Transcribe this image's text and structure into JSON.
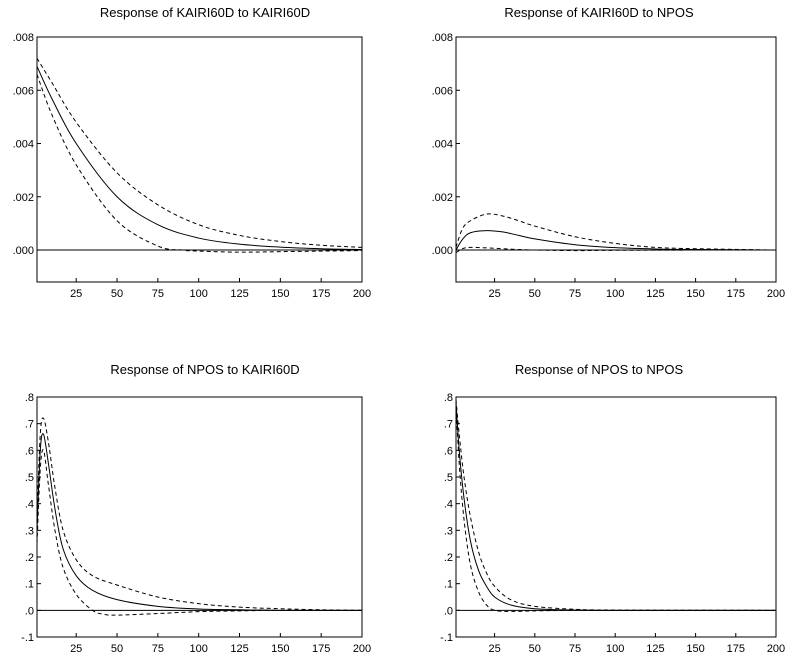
{
  "chart_data": [
    {
      "type": "line",
      "title": "Response of KAIRI60D to KAIRI60D",
      "xlabel": "",
      "ylabel": "",
      "xlim": [
        1,
        200
      ],
      "ylim": [
        -0.0012,
        0.008
      ],
      "xticks": [
        25,
        50,
        75,
        100,
        125,
        150,
        175,
        200
      ],
      "xtick_labels": [
        "25",
        "50",
        "75",
        "100",
        "125",
        "150",
        "175",
        "200"
      ],
      "yticks": [
        0,
        0.002,
        0.004,
        0.006,
        0.008
      ],
      "ytick_labels": [
        ".000",
        ".002",
        ".004",
        ".006",
        ".008"
      ],
      "zero_line": true,
      "series": [
        {
          "style": "solid",
          "x": [
            1,
            10,
            25,
            50,
            75,
            100,
            125,
            150,
            175,
            200
          ],
          "y": [
            0.0069,
            0.0057,
            0.004,
            0.002,
            0.00095,
            0.00045,
            0.00022,
            0.00011,
            5e-05,
            2e-05
          ]
        },
        {
          "style": "dashed",
          "x": [
            1,
            10,
            25,
            50,
            75,
            100,
            125,
            150,
            175,
            200
          ],
          "y": [
            0.0072,
            0.0063,
            0.0048,
            0.0029,
            0.0017,
            0.00095,
            0.00055,
            0.00032,
            0.00018,
            0.0001
          ]
        },
        {
          "style": "dashed",
          "x": [
            1,
            10,
            25,
            50,
            75,
            90,
            100,
            125,
            150,
            175,
            200
          ],
          "y": [
            0.0066,
            0.0051,
            0.0032,
            0.0011,
            0.00015,
            0.0,
            -4e-05,
            -8e-05,
            -6e-05,
            -4e-05,
            -2e-05
          ]
        }
      ]
    },
    {
      "type": "line",
      "title": "Response of KAIRI60D to NPOS",
      "xlabel": "",
      "ylabel": "",
      "xlim": [
        1,
        200
      ],
      "ylim": [
        -0.0012,
        0.008
      ],
      "xticks": [
        25,
        50,
        75,
        100,
        125,
        150,
        175,
        200
      ],
      "xtick_labels": [
        "25",
        "50",
        "75",
        "100",
        "125",
        "150",
        "175",
        "200"
      ],
      "yticks": [
        0,
        0.002,
        0.004,
        0.006,
        0.008
      ],
      "ytick_labels": [
        ".000",
        ".002",
        ".004",
        ".006",
        ".008"
      ],
      "zero_line": true,
      "series": [
        {
          "style": "solid",
          "x": [
            1,
            5,
            10,
            20,
            30,
            40,
            50,
            75,
            100,
            125,
            150,
            200
          ],
          "y": [
            0.0,
            0.0004,
            0.00065,
            0.00073,
            0.00068,
            0.00055,
            0.00042,
            0.0002,
            9e-05,
            4e-05,
            2e-05,
            0.0
          ]
        },
        {
          "style": "dashed",
          "x": [
            1,
            5,
            10,
            20,
            30,
            40,
            50,
            75,
            100,
            125,
            150,
            200
          ],
          "y": [
            0.0001,
            0.0008,
            0.0011,
            0.00135,
            0.00128,
            0.0011,
            0.0009,
            0.0005,
            0.00025,
            0.0001,
            5e-05,
            0.0
          ]
        },
        {
          "style": "dashed",
          "x": [
            1,
            5,
            10,
            20,
            30,
            40,
            50,
            75,
            100,
            150,
            200
          ],
          "y": [
            -0.0001,
            5e-05,
            0.0001,
            8e-05,
            5e-05,
            2e-05,
            0.0,
            -2e-05,
            -1e-05,
            0.0,
            0.0
          ]
        }
      ]
    },
    {
      "type": "line",
      "title": "Response of NPOS to KAIRI60D",
      "xlabel": "",
      "ylabel": "",
      "xlim": [
        1,
        200
      ],
      "ylim": [
        -0.1,
        0.8
      ],
      "xticks": [
        25,
        50,
        75,
        100,
        125,
        150,
        175,
        200
      ],
      "xtick_labels": [
        "25",
        "50",
        "75",
        "100",
        "125",
        "150",
        "175",
        "200"
      ],
      "yticks": [
        -0.1,
        0,
        0.1,
        0.2,
        0.3,
        0.4,
        0.5,
        0.6,
        0.7,
        0.8
      ],
      "ytick_labels": [
        "-.1",
        ".0",
        ".1",
        ".2",
        ".3",
        ".4",
        ".5",
        ".6",
        ".7",
        ".8"
      ],
      "zero_line": true,
      "series": [
        {
          "style": "solid",
          "x": [
            1,
            3,
            5,
            8,
            12,
            17,
            25,
            35,
            50,
            75,
            100,
            125,
            150,
            200
          ],
          "y": [
            0.3,
            0.6,
            0.66,
            0.55,
            0.38,
            0.23,
            0.13,
            0.075,
            0.04,
            0.015,
            0.005,
            0.002,
            0.0,
            0.0
          ]
        },
        {
          "style": "dashed",
          "x": [
            1,
            3,
            5,
            8,
            12,
            17,
            25,
            35,
            50,
            75,
            100,
            125,
            150,
            175,
            200
          ],
          "y": [
            0.35,
            0.66,
            0.72,
            0.63,
            0.46,
            0.3,
            0.19,
            0.13,
            0.095,
            0.05,
            0.025,
            0.012,
            0.006,
            0.002,
            0.0
          ]
        },
        {
          "style": "dashed",
          "x": [
            1,
            3,
            5,
            8,
            12,
            17,
            25,
            35,
            42,
            50,
            75,
            100,
            125,
            150,
            200
          ],
          "y": [
            0.25,
            0.53,
            0.6,
            0.47,
            0.3,
            0.16,
            0.06,
            0.0,
            -0.015,
            -0.018,
            -0.012,
            -0.005,
            -0.002,
            0.0,
            0.0
          ]
        }
      ]
    },
    {
      "type": "line",
      "title": "Response of NPOS to NPOS",
      "xlabel": "",
      "ylabel": "",
      "xlim": [
        1,
        200
      ],
      "ylim": [
        -0.1,
        0.8
      ],
      "xticks": [
        25,
        50,
        75,
        100,
        125,
        150,
        175,
        200
      ],
      "xtick_labels": [
        "25",
        "50",
        "75",
        "100",
        "125",
        "150",
        "175",
        "200"
      ],
      "yticks": [
        -0.1,
        0,
        0.1,
        0.2,
        0.3,
        0.4,
        0.5,
        0.6,
        0.7,
        0.8
      ],
      "ytick_labels": [
        "-.1",
        ".0",
        ".1",
        ".2",
        ".3",
        ".4",
        ".5",
        ".6",
        ".7",
        ".8"
      ],
      "zero_line": true,
      "series": [
        {
          "style": "solid",
          "x": [
            1,
            3,
            6,
            10,
            15,
            20,
            25,
            35,
            50,
            75,
            100,
            200
          ],
          "y": [
            0.78,
            0.6,
            0.42,
            0.26,
            0.15,
            0.09,
            0.05,
            0.02,
            0.006,
            0.001,
            0.0,
            0.0
          ]
        },
        {
          "style": "dashed",
          "x": [
            1,
            3,
            6,
            10,
            15,
            20,
            25,
            35,
            50,
            75,
            100,
            200
          ],
          "y": [
            0.79,
            0.66,
            0.5,
            0.35,
            0.22,
            0.14,
            0.09,
            0.04,
            0.015,
            0.004,
            0.001,
            0.0
          ]
        },
        {
          "style": "dashed",
          "x": [
            1,
            3,
            6,
            10,
            15,
            20,
            25,
            35,
            50,
            75,
            100,
            200
          ],
          "y": [
            0.77,
            0.55,
            0.34,
            0.17,
            0.07,
            0.02,
            0.0,
            -0.004,
            -0.002,
            0.0,
            0.0,
            0.0
          ]
        }
      ]
    }
  ]
}
